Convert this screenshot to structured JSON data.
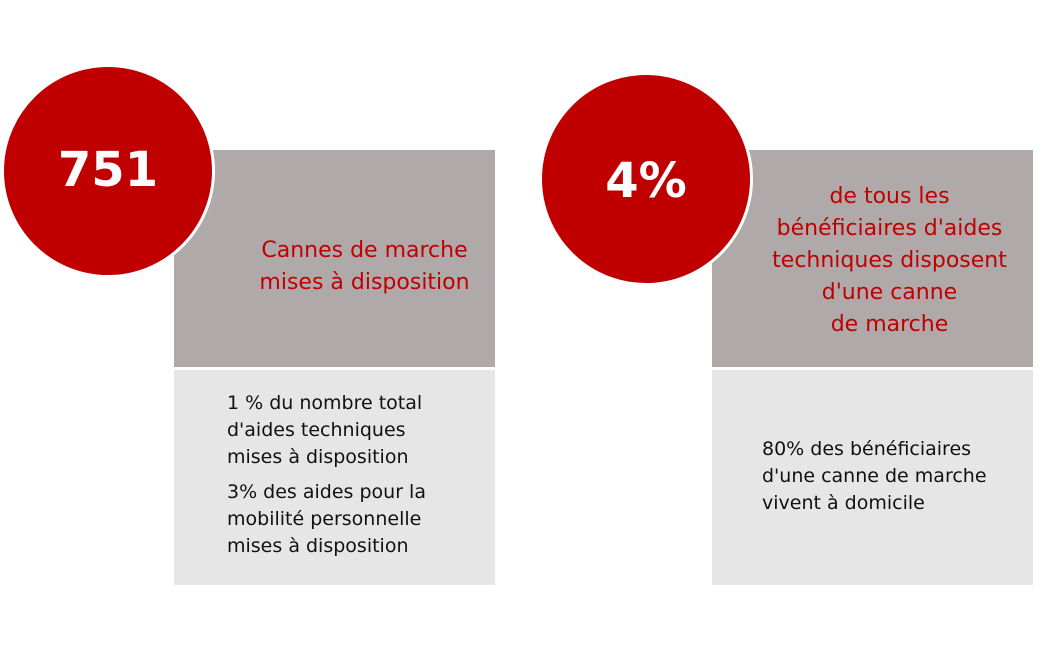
{
  "colors": {
    "accent_red": "#c00000",
    "panel_gray": "#afa9a9",
    "panel_light": "#e6e6e6"
  },
  "left_card": {
    "number": "751",
    "headline_lines": [
      "Cannes de marche",
      "mises à disposition"
    ],
    "details": [
      [
        "1 % du nombre total",
        "d'aides techniques",
        "mises à disposition"
      ],
      [
        "3% des aides pour la",
        "mobilité personnelle",
        "mises à disposition"
      ]
    ]
  },
  "right_card": {
    "number": "4%",
    "headline_lines": [
      "de tous les",
      "bénéficiaires d'aides",
      "techniques disposent",
      "d'une canne",
      "de marche"
    ],
    "details": [
      [
        "80% des bénéficiaires",
        "d'une canne de marche",
        "vivent à domicile"
      ]
    ]
  }
}
